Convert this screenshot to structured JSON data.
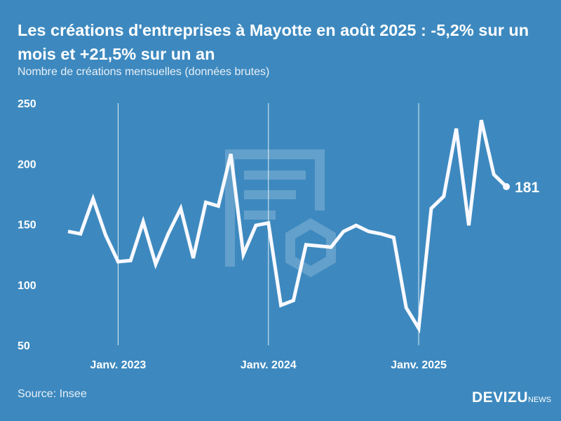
{
  "header": {
    "title": "Les créations d'entreprises à Mayotte en août 2025 : -5,2% sur un mois et +21,5% sur un an",
    "subtitle": "Nombre de créations mensuelles (données brutes)"
  },
  "footer": {
    "source": "Source: Insee",
    "logo_main": "DEVIZU",
    "logo_suffix": "NEWS"
  },
  "chart_data": {
    "type": "line",
    "title": "Les créations d'entreprises à Mayotte en août 2025 : -5,2% sur un mois et +21,5% sur un an",
    "ylabel": "Nombre de créations mensuelles (données brutes)",
    "x_start": "2022-09",
    "x_end": "2025-08",
    "ylim": [
      50,
      250
    ],
    "yticks": [
      "250",
      "200",
      "150",
      "100",
      "50"
    ],
    "ytick_values": [
      250,
      200,
      150,
      100,
      50
    ],
    "xticks": [
      {
        "label": "Janv. 2023",
        "index": 4
      },
      {
        "label": "Janv. 2024",
        "index": 16
      },
      {
        "label": "Janv. 2025",
        "index": 28
      }
    ],
    "values": [
      144,
      142,
      171,
      141,
      119,
      120,
      152,
      117,
      142,
      163,
      122,
      168,
      165,
      208,
      125,
      149,
      151,
      83,
      87,
      133,
      132,
      131,
      144,
      149,
      144,
      142,
      139,
      81,
      64,
      163,
      173,
      229,
      149,
      236,
      191,
      181
    ],
    "last_label": "181",
    "grid": "vertical lines at January",
    "color": "#ffffff"
  }
}
